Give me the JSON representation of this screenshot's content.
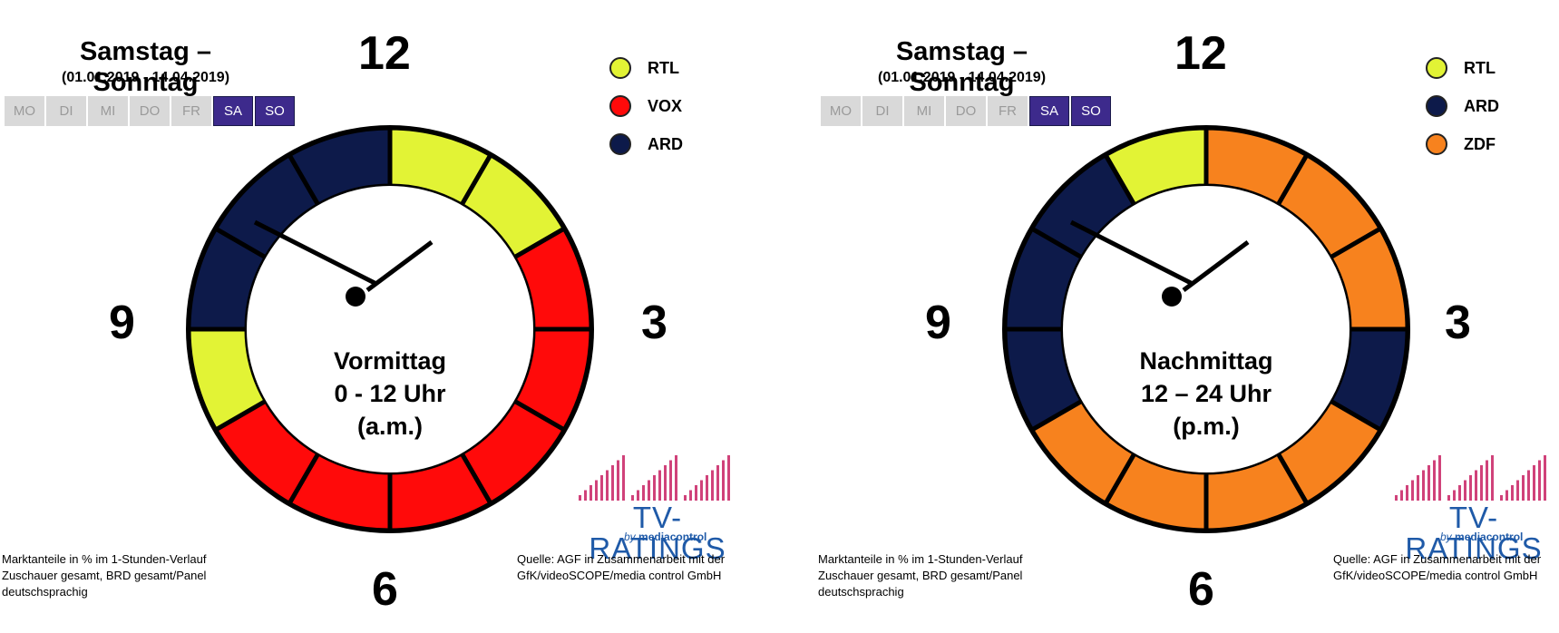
{
  "panels": [
    {
      "title": "Samstag – Sonntag",
      "daterange": "(01.01.2019 - 14.04.2019)",
      "days": [
        {
          "label": "MO",
          "active": false
        },
        {
          "label": "DI",
          "active": false
        },
        {
          "label": "MI",
          "active": false
        },
        {
          "label": "DO",
          "active": false
        },
        {
          "label": "FR",
          "active": false
        },
        {
          "label": "SA",
          "active": true
        },
        {
          "label": "SO",
          "active": true
        }
      ],
      "numerals": {
        "top": "12",
        "right": "3",
        "bottom": "6",
        "left": "9"
      },
      "legend": [
        {
          "label": "RTL",
          "color": "#e2f335"
        },
        {
          "label": "VOX",
          "color": "#ff0a0a"
        },
        {
          "label": "ARD",
          "color": "#0d1a4a"
        }
      ],
      "center_lines": [
        "Vormittag",
        "0 - 12 Uhr",
        "(a.m.)"
      ],
      "footer_left": [
        "Marktanteile in % im 1-Stunden-Verlauf",
        "Zuschauer gesamt, BRD gesamt/Panel",
        "deutschsprachig"
      ],
      "footer_right": [
        "Quelle: AGF in Zusammenarbeit  mit der",
        "GfK/videoSCOPE/media  control GmbH"
      ],
      "logo": {
        "word": "TV-RATINGS",
        "sub_by": "by",
        "sub_brand": "mediacontrol"
      }
    },
    {
      "title": "Samstag – Sonntag",
      "daterange": "(01.01.2019 - 14.04.2019)",
      "days": [
        {
          "label": "MO",
          "active": false
        },
        {
          "label": "DI",
          "active": false
        },
        {
          "label": "MI",
          "active": false
        },
        {
          "label": "DO",
          "active": false
        },
        {
          "label": "FR",
          "active": false
        },
        {
          "label": "SA",
          "active": true
        },
        {
          "label": "SO",
          "active": true
        }
      ],
      "numerals": {
        "top": "12",
        "right": "3",
        "bottom": "6",
        "left": "9"
      },
      "legend": [
        {
          "label": "RTL",
          "color": "#e2f335"
        },
        {
          "label": "ARD",
          "color": "#0d1a4a"
        },
        {
          "label": "ZDF",
          "color": "#f7821e"
        }
      ],
      "center_lines": [
        "Nachmittag",
        "12 – 24 Uhr",
        "(p.m.)"
      ],
      "footer_left": [
        "Marktanteile in % im 1-Stunden-Verlauf",
        "Zuschauer gesamt, BRD gesamt/Panel",
        "deutschsprachig"
      ],
      "footer_right": [
        "Quelle: AGF in Zusammenarbeit  mit der",
        "GfK/videoSCOPE/media  control GmbH"
      ],
      "logo": {
        "word": "TV-RATINGS",
        "sub_by": "by",
        "sub_brand": "mediacontrol"
      }
    }
  ],
  "chart_data": [
    {
      "type": "clock-ring",
      "title": "Samstag – Sonntag",
      "period": "Vormittag 0 - 12 Uhr (a.m.)",
      "categories": [
        "0",
        "1",
        "2",
        "3",
        "4",
        "5",
        "6",
        "7",
        "8",
        "9",
        "10",
        "11"
      ],
      "leaders": [
        "RTL",
        "RTL",
        "VOX",
        "VOX",
        "VOX",
        "VOX",
        "VOX",
        "VOX",
        "RTL",
        "ARD",
        "ARD",
        "ARD"
      ],
      "colors": {
        "RTL": "#e2f335",
        "VOX": "#ff0a0a",
        "ARD": "#0d1a4a"
      }
    },
    {
      "type": "clock-ring",
      "title": "Samstag – Sonntag",
      "period": "Nachmittag 12 – 24 Uhr (p.m.)",
      "categories": [
        "12",
        "13",
        "14",
        "15",
        "16",
        "17",
        "18",
        "19",
        "20",
        "21",
        "22",
        "23"
      ],
      "leaders": [
        "ZDF",
        "ZDF",
        "ZDF",
        "ARD",
        "ZDF",
        "ZDF",
        "ZDF",
        "ZDF",
        "ARD",
        "ARD",
        "ARD",
        "RTL"
      ],
      "colors": {
        "RTL": "#e2f335",
        "ARD": "#0d1a4a",
        "ZDF": "#f7821e"
      }
    }
  ]
}
